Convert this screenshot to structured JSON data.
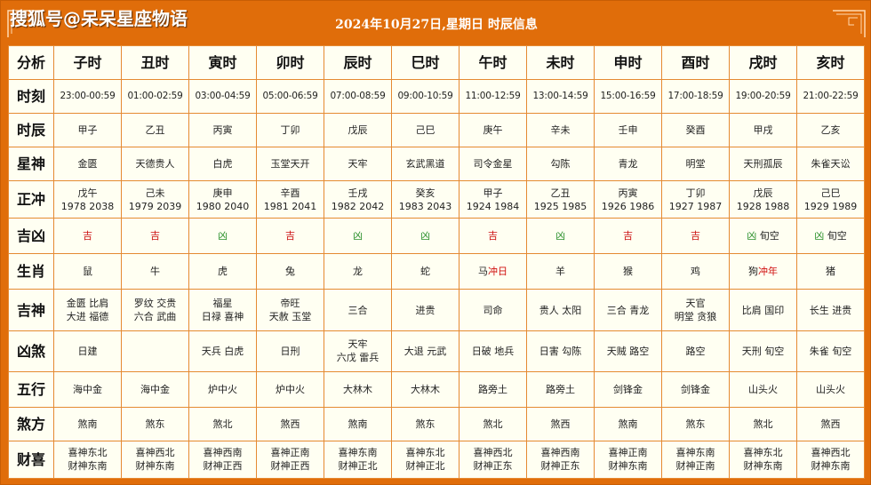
{
  "header": {
    "watermark": "搜狐号@呆呆星座物语",
    "title": "2024年10月27日,星期日 时辰信息"
  },
  "table": {
    "corner_label": "分析",
    "columns": [
      "子时",
      "丑时",
      "寅时",
      "卯时",
      "辰时",
      "巳时",
      "午时",
      "未时",
      "申时",
      "酉时",
      "戌时",
      "亥时"
    ],
    "rows": [
      {
        "label": "时刻",
        "cells": [
          "23:00-00:59",
          "01:00-02:59",
          "03:00-04:59",
          "05:00-06:59",
          "07:00-08:59",
          "09:00-10:59",
          "11:00-12:59",
          "13:00-14:59",
          "15:00-16:59",
          "17:00-18:59",
          "19:00-20:59",
          "21:00-22:59"
        ]
      },
      {
        "label": "时辰",
        "cells": [
          "甲子",
          "乙丑",
          "丙寅",
          "丁卯",
          "戊辰",
          "己巳",
          "庚午",
          "辛未",
          "壬申",
          "癸酉",
          "甲戌",
          "乙亥"
        ]
      },
      {
        "label": "星神",
        "cells": [
          "金匮",
          "天德贵人",
          "白虎",
          "玉堂天开",
          "天牢",
          "玄武黑道",
          "司令金星",
          "勾陈",
          "青龙",
          "明堂",
          "天刑孤辰",
          "朱雀天讼"
        ]
      },
      {
        "label": "正冲",
        "cells": [
          [
            "戊午",
            "1978 2038"
          ],
          [
            "己未",
            "1979 2039"
          ],
          [
            "庚申",
            "1980 2040"
          ],
          [
            "辛酉",
            "1981 2041"
          ],
          [
            "壬戌",
            "1982 2042"
          ],
          [
            "癸亥",
            "1983 2043"
          ],
          [
            "甲子",
            "1924 1984"
          ],
          [
            "乙丑",
            "1925 1985"
          ],
          [
            "丙寅",
            "1926 1986"
          ],
          [
            "丁卯",
            "1927 1987"
          ],
          [
            "戊辰",
            "1928 1988"
          ],
          [
            "己巳",
            "1929 1989"
          ]
        ]
      },
      {
        "label": "吉凶",
        "cells": [
          {
            "v": "吉",
            "x": ""
          },
          {
            "v": "吉",
            "x": ""
          },
          {
            "v": "凶",
            "x": ""
          },
          {
            "v": "吉",
            "x": ""
          },
          {
            "v": "凶",
            "x": ""
          },
          {
            "v": "凶",
            "x": ""
          },
          {
            "v": "吉",
            "x": ""
          },
          {
            "v": "凶",
            "x": ""
          },
          {
            "v": "吉",
            "x": ""
          },
          {
            "v": "吉",
            "x": ""
          },
          {
            "v": "凶",
            "x": " 旬空"
          },
          {
            "v": "凶",
            "x": " 旬空"
          }
        ]
      },
      {
        "label": "生肖",
        "cells": [
          {
            "v": "鼠",
            "x": ""
          },
          {
            "v": "牛",
            "x": ""
          },
          {
            "v": "虎",
            "x": ""
          },
          {
            "v": "兔",
            "x": ""
          },
          {
            "v": "龙",
            "x": ""
          },
          {
            "v": "蛇",
            "x": ""
          },
          {
            "v": "马",
            "x": "冲日"
          },
          {
            "v": "羊",
            "x": ""
          },
          {
            "v": "猴",
            "x": ""
          },
          {
            "v": "鸡",
            "x": ""
          },
          {
            "v": "狗",
            "x": "冲年"
          },
          {
            "v": "猪",
            "x": ""
          }
        ]
      },
      {
        "label": "吉神",
        "cells": [
          [
            "金匮 比肩",
            "大进 福德"
          ],
          [
            "罗纹 交贵",
            "六合 武曲"
          ],
          [
            "福星",
            "日禄 喜神"
          ],
          [
            "帝旺",
            "天赦 玉堂"
          ],
          [
            "三合"
          ],
          [
            "进贵"
          ],
          [
            "司命"
          ],
          [
            "贵人 太阳"
          ],
          [
            "三合 青龙"
          ],
          [
            "天官",
            "明堂 贪狼"
          ],
          [
            "比肩 国印"
          ],
          [
            "长生 进贵"
          ]
        ]
      },
      {
        "label": "凶煞",
        "cells": [
          [
            "日建"
          ],
          [
            ""
          ],
          [
            "天兵 白虎"
          ],
          [
            "日刑"
          ],
          [
            "天牢",
            "六戊 雷兵"
          ],
          [
            "大退 元武"
          ],
          [
            "日破 地兵"
          ],
          [
            "日害 勾陈"
          ],
          [
            "天贼 路空"
          ],
          [
            "路空"
          ],
          [
            "天刑 旬空"
          ],
          [
            "朱雀 旬空"
          ]
        ]
      },
      {
        "label": "五行",
        "cells": [
          "海中金",
          "海中金",
          "炉中火",
          "炉中火",
          "大林木",
          "大林木",
          "路旁土",
          "路旁土",
          "剑锋金",
          "剑锋金",
          "山头火",
          "山头火"
        ]
      },
      {
        "label": "煞方",
        "cells": [
          "煞南",
          "煞东",
          "煞北",
          "煞西",
          "煞南",
          "煞东",
          "煞北",
          "煞西",
          "煞南",
          "煞东",
          "煞北",
          "煞西"
        ]
      },
      {
        "label": "财喜",
        "cells": [
          [
            "喜神东北",
            "财神东南"
          ],
          [
            "喜神西北",
            "财神东南"
          ],
          [
            "喜神西南",
            "财神正西"
          ],
          [
            "喜神正南",
            "财神正西"
          ],
          [
            "喜神东南",
            "财神正北"
          ],
          [
            "喜神东北",
            "财神正北"
          ],
          [
            "喜神西北",
            "财神正东"
          ],
          [
            "喜神西南",
            "财神正东"
          ],
          [
            "喜神正南",
            "财神东南"
          ],
          [
            "喜神东南",
            "财神正南"
          ],
          [
            "喜神东北",
            "财神东南"
          ],
          [
            "喜神西北",
            "财神东南"
          ]
        ]
      }
    ]
  },
  "colors": {
    "frame": "#e06d0a",
    "grid": "#e58a32",
    "cell_bg": "#fffff2",
    "good": "#cc1010",
    "bad": "#2a8f2a"
  }
}
